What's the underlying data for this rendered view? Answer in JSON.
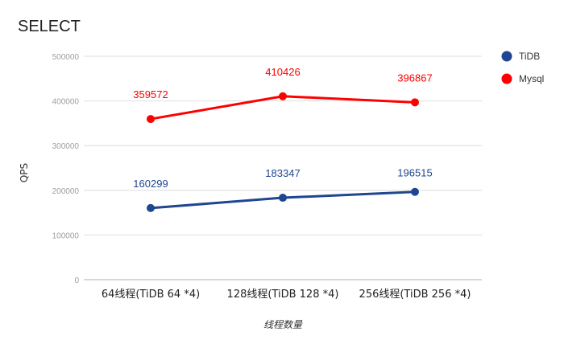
{
  "chart_data": {
    "type": "line",
    "title": "SELECT",
    "xlabel": "线程数量",
    "ylabel": "QPS",
    "categories": [
      "64线程(TiDB 64 *4)",
      "128线程(TiDB 128 *4)",
      "256线程(TiDB 256 *4)"
    ],
    "ylim": [
      0,
      500000
    ],
    "yticks": [
      0,
      100000,
      200000,
      300000,
      400000,
      500000
    ],
    "grid": true,
    "legend_position": "right",
    "series": [
      {
        "name": "TiDB",
        "color": "#1f4690",
        "values": [
          160299,
          183347,
          196515
        ]
      },
      {
        "name": "Mysql",
        "color": "#ff0000",
        "values": [
          359572,
          410426,
          396867
        ]
      }
    ]
  }
}
